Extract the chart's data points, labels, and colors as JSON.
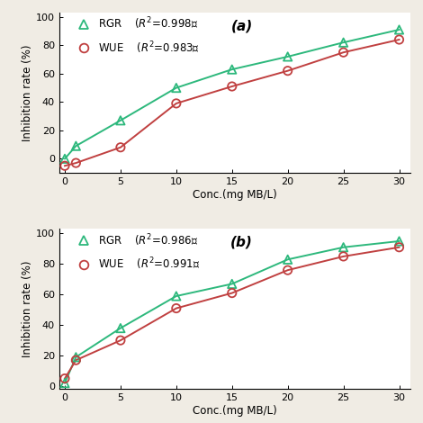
{
  "panel_a": {
    "title": "(a)",
    "rgr_x": [
      0,
      1,
      5,
      10,
      15,
      20,
      25,
      30
    ],
    "rgr_y": [
      0,
      9,
      27,
      50,
      63,
      72,
      82,
      91
    ],
    "wue_x": [
      0,
      1,
      5,
      10,
      15,
      20,
      25,
      30
    ],
    "wue_y": [
      -5,
      -3,
      8,
      39,
      51,
      62,
      75,
      84
    ],
    "rgr_r2": "0.998",
    "wue_r2": "0.983",
    "ylim": [
      -10,
      103
    ],
    "yticks": [
      0,
      20,
      40,
      60,
      80,
      100
    ]
  },
  "panel_b": {
    "title": "(b)",
    "rgr_x": [
      0,
      1,
      5,
      10,
      15,
      20,
      25,
      30
    ],
    "rgr_y": [
      2,
      19,
      38,
      59,
      67,
      83,
      91,
      95
    ],
    "wue_x": [
      0,
      1,
      5,
      10,
      15,
      20,
      25,
      30
    ],
    "wue_y": [
      5,
      17,
      30,
      51,
      61,
      76,
      85,
      91
    ],
    "rgr_r2": "0.986",
    "wue_r2": "0.991",
    "ylim": [
      -2,
      103
    ],
    "yticks": [
      0,
      20,
      40,
      60,
      80,
      100
    ]
  },
  "xlim": [
    -0.5,
    31
  ],
  "xticks": [
    0,
    5,
    10,
    15,
    20,
    25,
    30
  ],
  "xlabel": "Conc.(mg MB/L)",
  "ylabel": "Inhibition rate (%)",
  "green_color": "#2db87c",
  "red_color": "#c04040",
  "bg_color": "#ffffff",
  "fig_bg": "#f0ece4"
}
